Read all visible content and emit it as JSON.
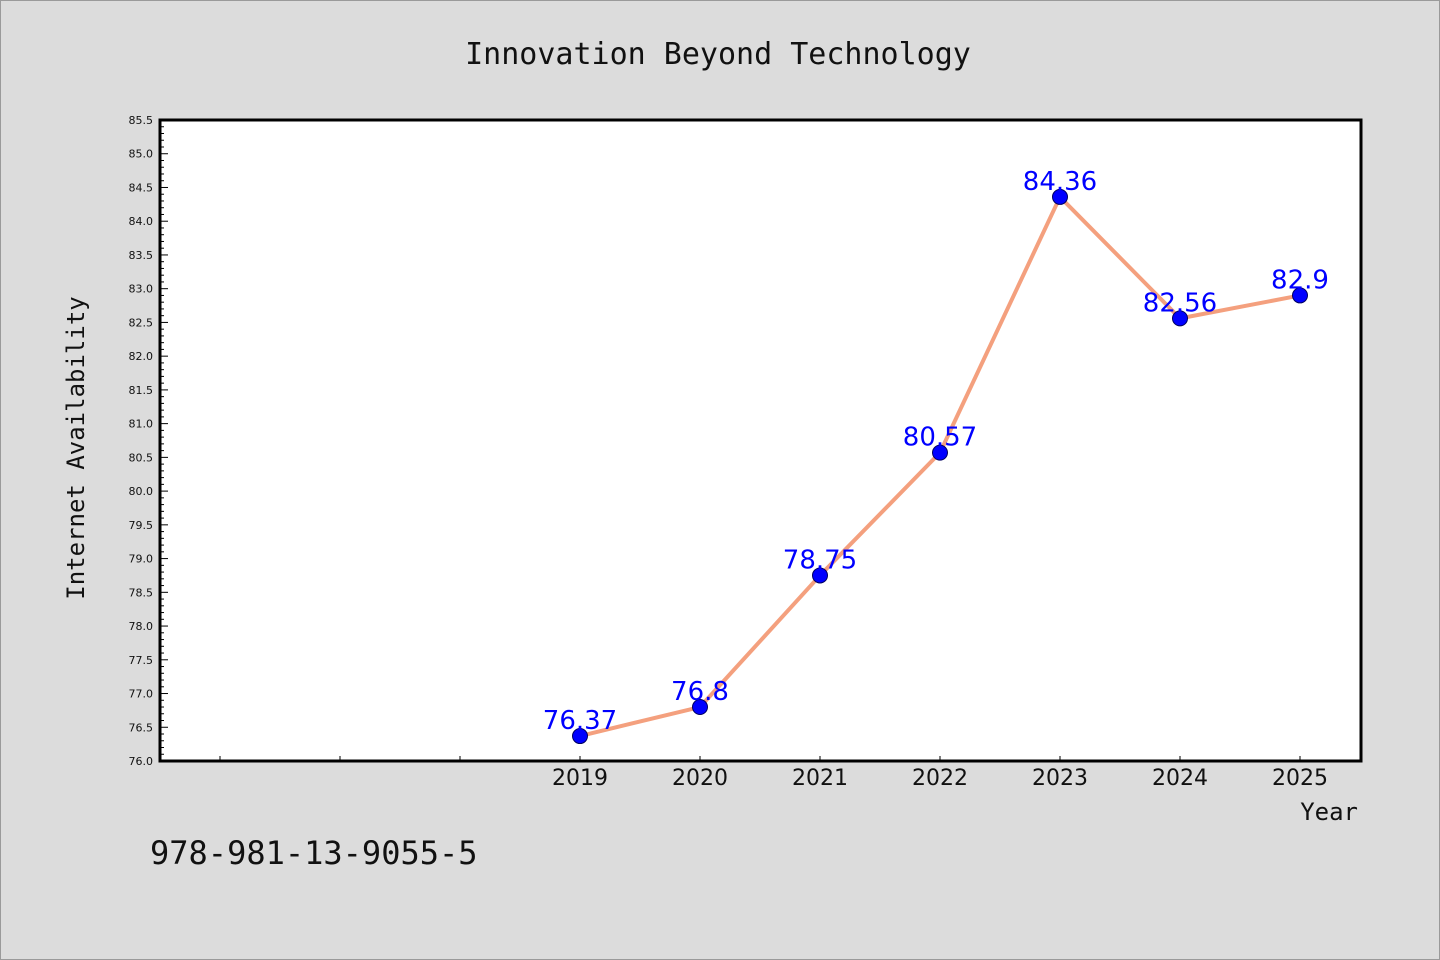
{
  "chart_data": {
    "type": "line",
    "title": "Innovation Beyond Technology",
    "xlabel": "Year",
    "ylabel": "Internet Availability",
    "categories": [
      "2019",
      "2020",
      "2021",
      "2022",
      "2023",
      "2024",
      "2025"
    ],
    "values": [
      76.37,
      76.8,
      78.75,
      80.57,
      84.36,
      82.56,
      82.9
    ],
    "data_labels": [
      "76.37",
      "76.8",
      "78.75",
      "80.57",
      "84.36",
      "82.56",
      "82.9"
    ],
    "ylim": [
      76.0,
      85.5
    ],
    "ytick_step": 0.5,
    "grid": false,
    "line_color": "#f4a07e",
    "marker_color": "#0000ff",
    "label_color": "#0000ff"
  },
  "footer": {
    "code": "978-981-13-9055-5"
  }
}
